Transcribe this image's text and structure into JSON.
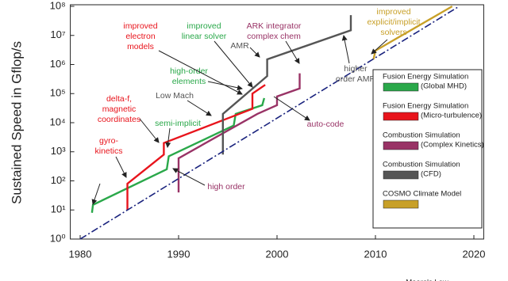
{
  "chart_data": {
    "type": "line",
    "y_label": "Sustained Speed in Gflop/s",
    "xlim": [
      1979,
      2021
    ],
    "xticks": [
      1980,
      1990,
      2000,
      2010,
      2020
    ],
    "ylim": [
      1,
      100000000
    ],
    "log_y": true,
    "yticks": [
      {
        "value": 1,
        "label": "10⁰"
      },
      {
        "value": 10,
        "label": "10¹"
      },
      {
        "value": 100,
        "label": "10²"
      },
      {
        "value": 1000,
        "label": "10³"
      },
      {
        "value": 10000,
        "label": "10⁴"
      },
      {
        "value": 100000,
        "label": "10⁵"
      },
      {
        "value": 1000000,
        "label": "10⁶"
      },
      {
        "value": 10000000,
        "label": "10⁷"
      },
      {
        "value": 100000000,
        "label": "10⁸"
      }
    ],
    "series": [
      {
        "name": "Fusion Energy Simulation",
        "name_line2": "(Global MHD)",
        "color": "#2aa84a",
        "x": [
          1981.2,
          1981.3,
          1988.8,
          1989.0,
          1995.6,
          1995.8,
          1998.5,
          1998.7
        ],
        "values": [
          8,
          15,
          250,
          700,
          8000,
          20000,
          40000,
          70000
        ]
      },
      {
        "name": "Fusion Energy Simulation",
        "name_line2": "(Micro-turbulence)",
        "color": "#e8141c",
        "x": [
          1984.8,
          1984.8,
          1988.5,
          1988.5,
          1997.5,
          1997.5,
          1998.8
        ],
        "values": [
          10,
          80,
          800,
          2000,
          30000,
          100000,
          200000
        ]
      },
      {
        "name": "Combustion Simulation",
        "name_line2": "(Complex Kinetics)",
        "color": "#993366",
        "x": [
          1990.0,
          1990.0,
          1998.0,
          2000.0,
          2000.0,
          2002.3,
          2002.3
        ],
        "values": [
          40,
          600,
          20000,
          40000,
          80000,
          150000,
          500000
        ]
      },
      {
        "name": "Combustion Simulation",
        "name_line2": "(CFD)",
        "color": "#555555",
        "x": [
          1994.5,
          1994.5,
          1999.0,
          1999.0,
          2007.5,
          2007.5
        ],
        "values": [
          800,
          20000,
          400000,
          1500000,
          15000000,
          50000000
        ]
      },
      {
        "name": "COSMO Climate Model",
        "color": "#c8a028",
        "x": [
          2009.8,
          2010.0,
          2017.8
        ],
        "values": [
          1500000,
          3000000,
          100000000
        ]
      },
      {
        "name": "Moore's Law",
        "color": "#1a237e",
        "dash": "dashdot",
        "x": [
          1980,
          2018.5
        ],
        "values": [
          1,
          100000000
        ]
      }
    ],
    "annotations": [
      {
        "lines": [
          "improved",
          "electron",
          "models"
        ],
        "color": "#e8141c"
      },
      {
        "lines": [
          "improved",
          "linear solver"
        ],
        "color": "#2aa84a"
      },
      {
        "lines": [
          "ARK integrator",
          "complex chem"
        ],
        "color": "#993366"
      },
      {
        "lines": [
          "AMR"
        ],
        "color": "#555555"
      },
      {
        "lines": [
          "higher",
          "order AMR"
        ],
        "color": "#555555"
      },
      {
        "lines": [
          "improved",
          "explicit/implicit",
          "solvers"
        ],
        "color": "#c8a028"
      },
      {
        "lines": [
          "high-order",
          "elements"
        ],
        "color": "#2aa84a"
      },
      {
        "lines": [
          "Low Mach"
        ],
        "color": "#555555"
      },
      {
        "lines": [
          "delta-f,",
          "magnetic",
          "coordinates"
        ],
        "color": "#e8141c"
      },
      {
        "lines": [
          "semi-implicit"
        ],
        "color": "#2aa84a"
      },
      {
        "lines": [
          "gyro-",
          "kinetics"
        ],
        "color": "#e8141c"
      },
      {
        "lines": [
          "auto-code"
        ],
        "color": "#993366"
      },
      {
        "lines": [
          "high order"
        ],
        "color": "#993366"
      }
    ]
  }
}
